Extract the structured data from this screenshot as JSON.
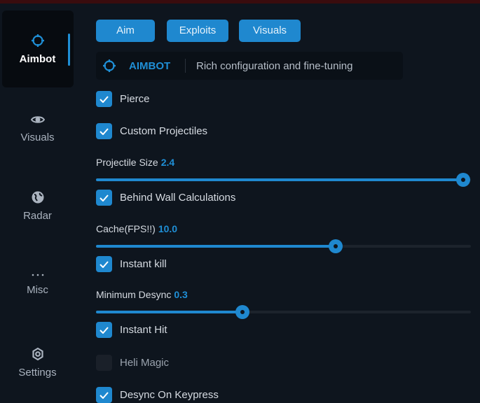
{
  "sidebar": {
    "items": [
      {
        "label": "Aimbot",
        "icon": "crosshair-icon",
        "active": true
      },
      {
        "label": "Visuals",
        "icon": "eye-icon"
      },
      {
        "label": "Radar",
        "icon": "globe-icon"
      },
      {
        "label": "Misc",
        "icon": "dots-icon"
      },
      {
        "label": "Settings",
        "icon": "gear-icon"
      }
    ]
  },
  "tabs": [
    "Aim",
    "Exploits",
    "Visuals"
  ],
  "header": {
    "title": "AIMBOT",
    "description": "Rich configuration and fine-tuning"
  },
  "options": {
    "pierce": {
      "label": "Pierce",
      "checked": true
    },
    "custom_projectiles": {
      "label": "Custom Projectiles",
      "checked": true
    },
    "projectile_size": {
      "label": "Projectile Size",
      "value": "2.4",
      "fill_percent": 98
    },
    "behind_wall": {
      "label": "Behind Wall Calculations",
      "checked": true
    },
    "cache": {
      "label": "Cache(FPS!!)",
      "value": "10.0",
      "fill_percent": 64
    },
    "instant_kill": {
      "label": "Instant kill",
      "checked": true
    },
    "min_desync": {
      "label": "Minimum Desync",
      "value": "0.3",
      "fill_percent": 39
    },
    "instant_hit": {
      "label": "Instant Hit",
      "checked": true
    },
    "heli_magic": {
      "label": "Heli Magic",
      "checked": false
    },
    "desync_keypress": {
      "label": "Desync On Keypress",
      "checked": true
    }
  },
  "colors": {
    "accent": "#1f88cf",
    "background": "#0e151e"
  }
}
